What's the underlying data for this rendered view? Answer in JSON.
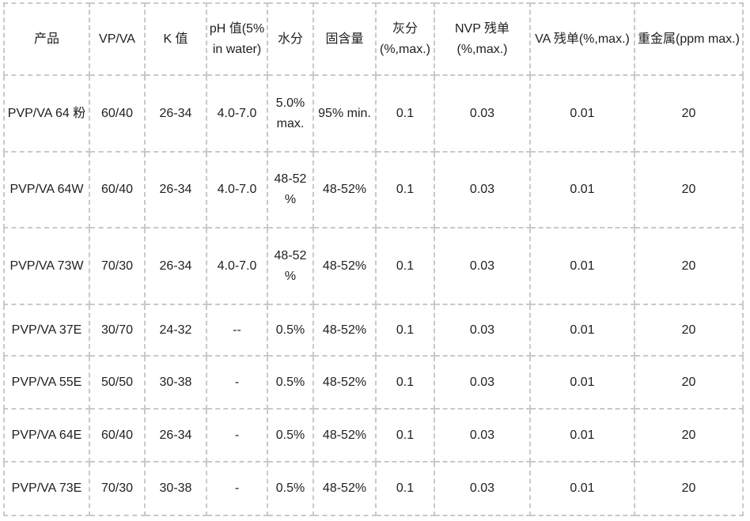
{
  "page": {
    "background_color": "#ffffff",
    "text_color": "#1f1f1f",
    "border_color": "#c9c9c9"
  },
  "table": {
    "columns": [
      {
        "id": "product",
        "label": "产品"
      },
      {
        "id": "vp-va",
        "label": "VP/VA"
      },
      {
        "id": "k-value",
        "label": "K 值"
      },
      {
        "id": "ph-value",
        "label": "pH 值(5% in water)"
      },
      {
        "id": "moisture",
        "label": "水分"
      },
      {
        "id": "solid-content",
        "label": "固含量"
      },
      {
        "id": "ash",
        "label": "灰分 (%,max.)"
      },
      {
        "id": "nvp-residual",
        "label": "NVP 残单 (%,max.)"
      },
      {
        "id": "va-residual",
        "label": "VA 残单(%,max.)"
      },
      {
        "id": "heavy-metal",
        "label": "重金属(ppm max.)"
      }
    ],
    "rows": [
      [
        "PVP/VA 64 粉",
        "60/40",
        "26-34",
        "4.0-7.0",
        "5.0% max.",
        "95% min.",
        "0.1",
        "0.03",
        "0.01",
        "20"
      ],
      [
        "PVP/VA 64W",
        "60/40",
        "26-34",
        "4.0-7.0",
        "48-52 %",
        "48-52%",
        "0.1",
        "0.03",
        "0.01",
        "20"
      ],
      [
        "PVP/VA 73W",
        "70/30",
        "26-34",
        "4.0-7.0",
        "48-52 %",
        "48-52%",
        "0.1",
        "0.03",
        "0.01",
        "20"
      ],
      [
        "PVP/VA 37E",
        "30/70",
        "24-32",
        "--",
        "0.5%",
        "48-52%",
        "0.1",
        "0.03",
        "0.01",
        "20"
      ],
      [
        "PVP/VA 55E",
        "50/50",
        "30-38",
        "-",
        "0.5%",
        "48-52%",
        "0.1",
        "0.03",
        "0.01",
        "20"
      ],
      [
        "PVP/VA 64E",
        "60/40",
        "26-34",
        "-",
        "0.5%",
        "48-52%",
        "0.1",
        "0.03",
        "0.01",
        "20"
      ],
      [
        "PVP/VA 73E",
        "70/30",
        "30-38",
        "-",
        "0.5%",
        "48-52%",
        "0.1",
        "0.03",
        "0.01",
        "20"
      ]
    ]
  }
}
